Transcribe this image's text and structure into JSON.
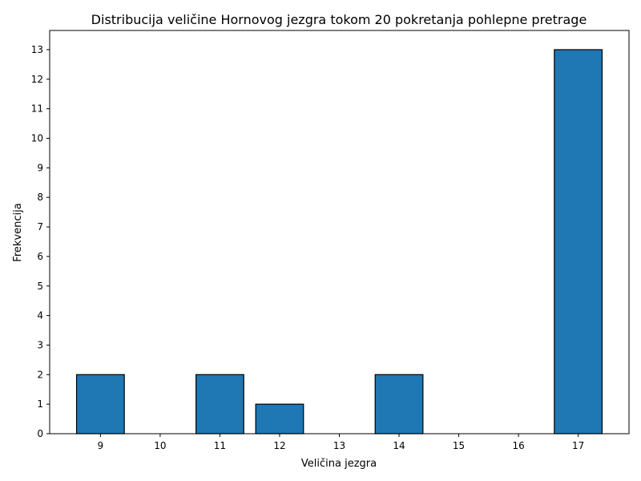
{
  "chart_data": {
    "type": "bar",
    "title": "Distribucija veličine Hornovog jezgra tokom 20 pokretanja pohlepne pretrage",
    "xlabel": "Veličina jezgra",
    "ylabel": "Frekvencija",
    "x": [
      9,
      11,
      12,
      14,
      17
    ],
    "values": [
      2,
      2,
      1,
      2,
      13
    ],
    "x_ticks": [
      9,
      10,
      11,
      12,
      13,
      14,
      15,
      16,
      17
    ],
    "y_ticks": [
      0,
      1,
      2,
      3,
      4,
      5,
      6,
      7,
      8,
      9,
      10,
      11,
      12,
      13
    ],
    "xlim": [
      8.15,
      17.85
    ],
    "ylim": [
      0,
      13.65
    ],
    "bar_width": 0.8,
    "bar_color": "#1f77b4",
    "bar_edge_color": "#000000",
    "grid": false,
    "legend": "none"
  }
}
